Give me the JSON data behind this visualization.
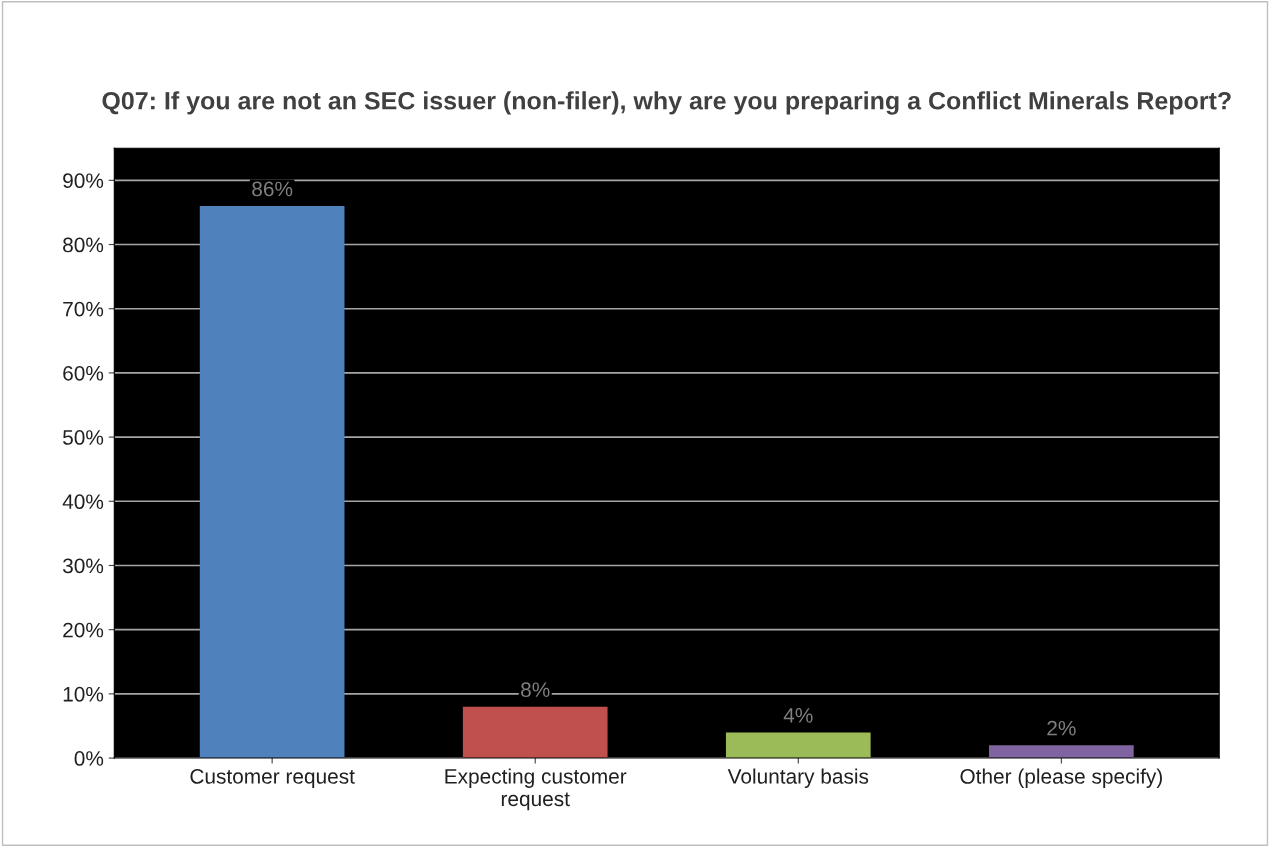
{
  "chart_data": {
    "type": "bar",
    "title": "Q07: If you are not an SEC issuer (non-filer), why are you preparing a Conflict Minerals Report?",
    "categories": [
      "Customer request",
      "Expecting customer\nrequest",
      "Voluntary basis",
      "Other (please specify)"
    ],
    "values": [
      86,
      8,
      4,
      2
    ],
    "colors": [
      "#4f81bd",
      "#c0504d",
      "#9bbb59",
      "#8064a2"
    ],
    "value_labels": [
      "86%",
      "8%",
      "4%",
      "2%"
    ],
    "ylim": [
      0,
      95
    ],
    "yticks": [
      {
        "value": 0,
        "label": "0%"
      },
      {
        "value": 10,
        "label": "10%"
      },
      {
        "value": 20,
        "label": "20%"
      },
      {
        "value": 30,
        "label": "30%"
      },
      {
        "value": 40,
        "label": "40%"
      },
      {
        "value": 50,
        "label": "50%"
      },
      {
        "value": 60,
        "label": "60%"
      },
      {
        "value": 70,
        "label": "70%"
      },
      {
        "value": 80,
        "label": "80%"
      },
      {
        "value": 90,
        "label": "90%"
      }
    ],
    "grid": "y"
  }
}
